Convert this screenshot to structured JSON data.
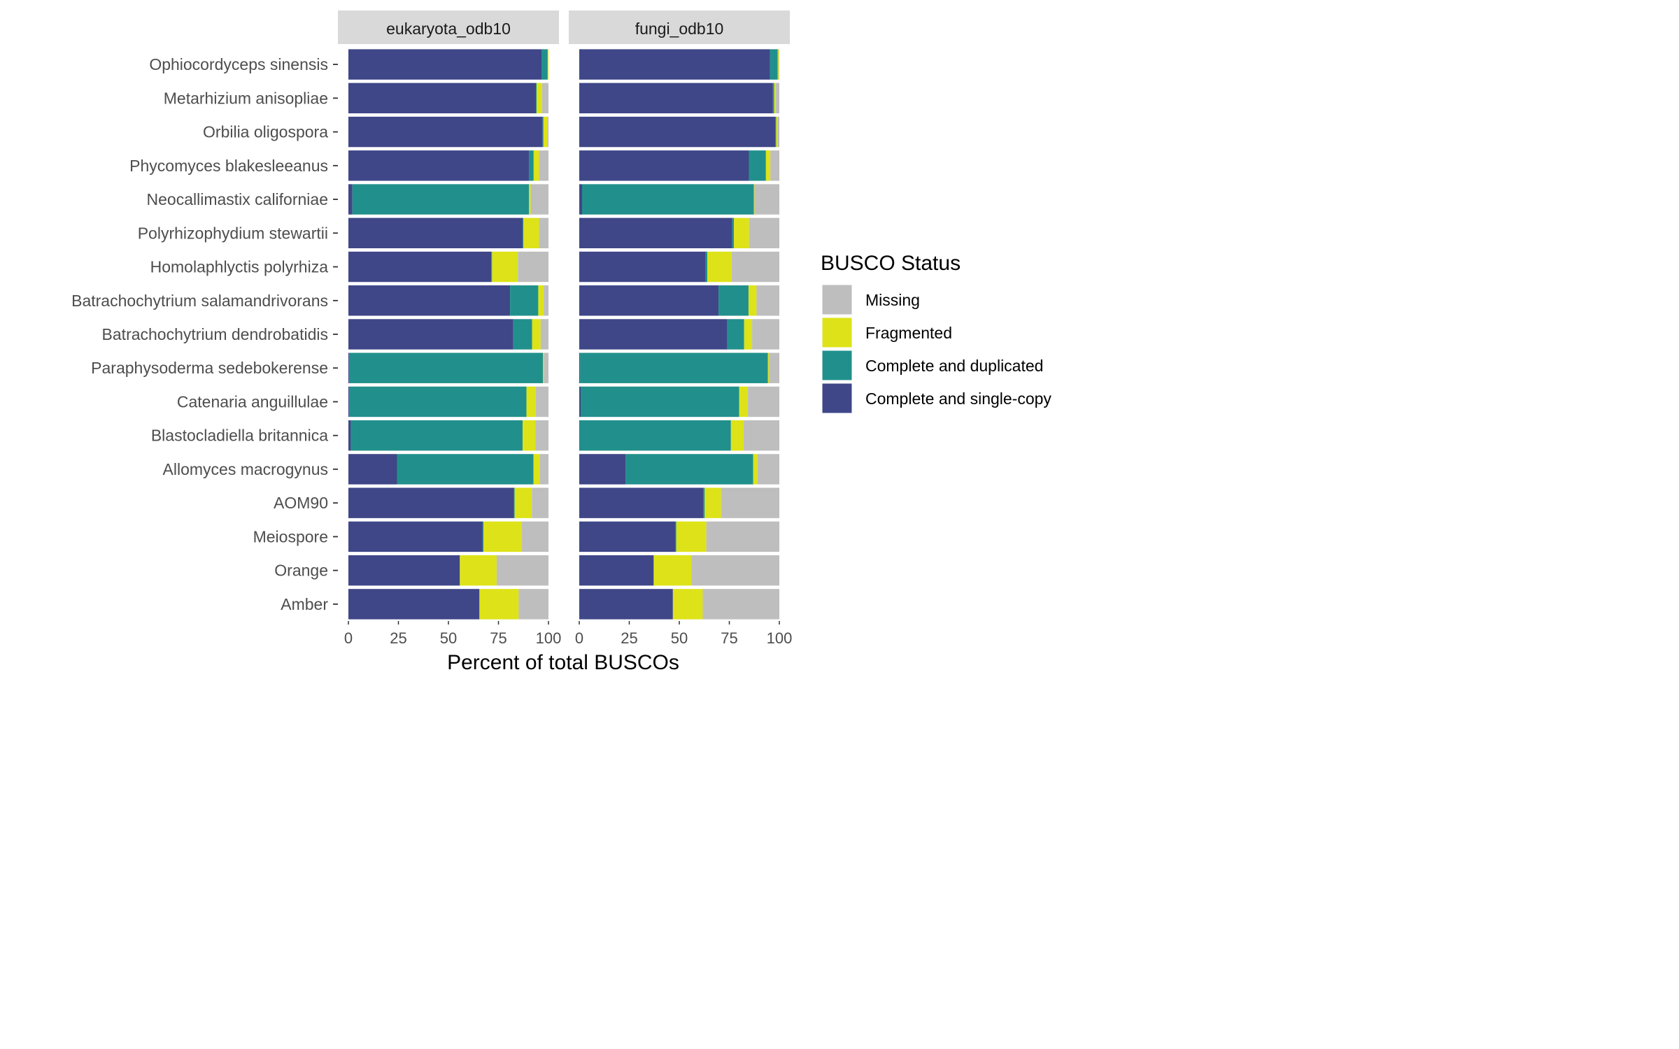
{
  "chart_data": {
    "type": "bar",
    "orientation": "horizontal",
    "stacked": true,
    "xlabel": "Percent of total BUSCOs",
    "xlim": [
      0,
      100
    ],
    "x_ticks": [
      0,
      25,
      50,
      75,
      100
    ],
    "x_tick_labels": [
      "0",
      "25",
      "50",
      "75",
      "100"
    ],
    "legend": {
      "title": "BUSCO Status",
      "placement": "right",
      "entries": [
        {
          "name": "Missing",
          "color": "#bebebe"
        },
        {
          "name": "Fragmented",
          "color": "#dde318"
        },
        {
          "name": "Complete and duplicated",
          "color": "#21908c"
        },
        {
          "name": "Complete and single-copy",
          "color": "#3f4788"
        }
      ]
    },
    "stack_order": [
      "Complete and single-copy",
      "Complete and duplicated",
      "Fragmented",
      "Missing"
    ],
    "categories": [
      "Ophiocordyceps sinensis",
      "Metarhizium anisopliae",
      "Orbilia oligospora",
      "Phycomyces blakesleeanus",
      "Neocallimastix californiae",
      "Polyrhizophydium stewartii",
      "Homolaphlyctis polyrhiza",
      "Batrachochytrium salamandrivorans",
      "Batrachochytrium dendrobatidis",
      "Paraphysoderma sedebokerense",
      "Catenaria anguillulae",
      "Blastocladiella britannica",
      "Allomyces macrogynus",
      "AOM90",
      "Meiospore",
      "Orange",
      "Amber"
    ],
    "facets": [
      {
        "name": "eukaryota_odb10",
        "series": [
          {
            "name": "Complete and single-copy",
            "values": [
              96.5,
              93.7,
              97.1,
              90.2,
              2.0,
              87.1,
              71.4,
              80.8,
              82.4,
              0.4,
              0.4,
              1.2,
              24.3,
              82.7,
              67.1,
              55.7,
              65.5
            ]
          },
          {
            "name": "Complete and duplicated",
            "values": [
              3.1,
              0.4,
              0.4,
              2.4,
              88.3,
              0.4,
              0.4,
              14.1,
              9.4,
              96.9,
              88.6,
              85.9,
              68.2,
              0.4,
              0.4,
              0.0,
              0.0
            ]
          },
          {
            "name": "Fragmented",
            "values": [
              0.4,
              2.7,
              2.0,
              2.7,
              0.8,
              7.8,
              12.9,
              2.7,
              4.3,
              0.4,
              4.7,
              6.3,
              3.1,
              8.6,
              19.2,
              18.4,
              19.6
            ]
          },
          {
            "name": "Missing",
            "values": [
              0.0,
              3.2,
              0.5,
              4.7,
              8.9,
              4.7,
              15.3,
              2.4,
              3.9,
              2.3,
              6.3,
              6.6,
              4.4,
              8.3,
              13.3,
              25.9,
              14.9
            ]
          }
        ]
      },
      {
        "name": "fungi_odb10",
        "series": [
          {
            "name": "Complete and single-copy",
            "values": [
              95.3,
              96.8,
              97.9,
              84.8,
              1.4,
              76.5,
              63.2,
              69.6,
              74.0,
              0.4,
              0.7,
              0.3,
              23.2,
              61.9,
              48.1,
              37.2,
              46.8
            ]
          },
          {
            "name": "Complete and duplicated",
            "values": [
              3.9,
              0.6,
              0.5,
              8.5,
              85.9,
              0.8,
              0.8,
              15.0,
              8.4,
              93.9,
              79.2,
              75.5,
              63.7,
              0.8,
              0.4,
              0.0,
              0.0
            ]
          },
          {
            "name": "Fragmented",
            "values": [
              0.5,
              0.8,
              0.9,
              2.2,
              0.3,
              7.6,
              12.2,
              4.0,
              4.0,
              0.5,
              4.4,
              6.4,
              2.2,
              8.2,
              15.0,
              18.8,
              14.9
            ]
          },
          {
            "name": "Missing",
            "values": [
              0.3,
              1.8,
              0.7,
              4.5,
              12.4,
              15.1,
              23.8,
              11.4,
              13.6,
              5.2,
              15.7,
              17.8,
              10.9,
              29.1,
              36.5,
              44.0,
              38.3
            ]
          }
        ]
      }
    ]
  }
}
